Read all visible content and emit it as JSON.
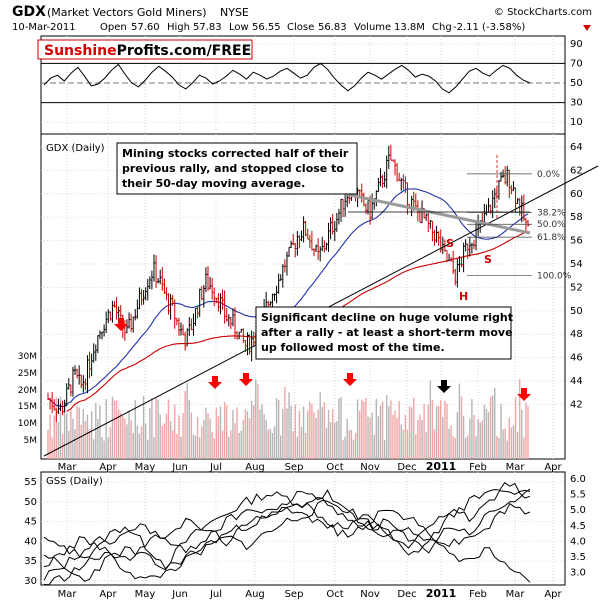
{
  "header": {
    "symbol": "GDX",
    "name": "(Market Vectors Gold Miners)",
    "exchange": "NYSE",
    "date": "10-Mar-2011",
    "open_label": "Open",
    "open": "57.60",
    "high_label": "High",
    "high": "57.83",
    "low_label": "Low",
    "low": "56.55",
    "close_label": "Close",
    "close": "56.83",
    "volume_label": "Volume",
    "volume": "13.8M",
    "chg_label": "Chg",
    "chg": "-2.11 (-3.58%)",
    "copyright": "© StockCharts.com"
  },
  "brand": {
    "part1": "Sunshine",
    "part2": "Profits.com/FREE",
    "color1": "#d40000"
  },
  "rsi": {
    "ticks": [
      90,
      70,
      50,
      30,
      10
    ],
    "values": [
      48,
      55,
      58,
      52,
      60,
      66,
      57,
      47,
      49,
      55,
      63,
      69,
      59,
      50,
      46,
      53,
      61,
      67,
      62,
      56,
      48,
      44,
      50,
      58,
      55,
      49,
      52,
      57,
      63,
      59,
      54,
      61,
      58,
      54,
      57,
      62,
      65,
      60,
      55,
      58,
      66,
      70,
      64,
      55,
      48,
      42,
      47,
      55,
      61,
      58,
      54,
      59,
      64,
      68,
      63,
      56,
      59,
      57,
      52,
      44,
      40,
      46,
      54,
      62,
      65,
      60,
      57,
      63,
      68,
      65,
      58,
      53,
      50
    ]
  },
  "price": {
    "title": "GDX (Daily)",
    "ticks": [
      64,
      62,
      60,
      58,
      56,
      54,
      52,
      50,
      48,
      46,
      44,
      42
    ],
    "close": [
      42.5,
      42.0,
      41.5,
      43.0,
      44.5,
      43.5,
      45.0,
      47.0,
      48.5,
      49.5,
      50.5,
      49.0,
      48.0,
      49.5,
      51.0,
      52.5,
      53.5,
      52.5,
      51.0,
      50.0,
      48.5,
      47.5,
      49.0,
      51.0,
      52.5,
      52.0,
      51.0,
      49.5,
      49.0,
      48.0,
      47.0,
      47.5,
      48.5,
      50.0,
      51.5,
      52.5,
      54.0,
      55.0,
      56.5,
      57.0,
      56.0,
      54.5,
      55.5,
      57.0,
      58.0,
      59.5,
      60.5,
      60.0,
      59.0,
      58.5,
      60.0,
      61.5,
      63.0,
      62.0,
      60.5,
      59.5,
      58.5,
      58.0,
      57.0,
      56.5,
      55.0,
      54.0,
      53.0,
      54.5,
      56.0,
      56.5,
      57.5,
      58.5,
      60.0,
      61.0,
      61.5,
      60.0,
      58.5,
      56.8
    ],
    "fib_levels": [
      {
        "label": "0.0%",
        "value": 61.7
      },
      {
        "label": "38.2%",
        "value": 58.4
      },
      {
        "label": "50.0%",
        "value": 57.4
      },
      {
        "label": "61.8%",
        "value": 56.3
      },
      {
        "label": "100.0%",
        "value": 53.0
      }
    ],
    "hs_labels": [
      "S",
      "S",
      "H"
    ],
    "annotation1": "Mining stocks corrected half of their previous rally, and stopped close to their 50-day moving average.",
    "annotation1_lines": [
      "Mining stocks corrected half of their",
      "previous rally, and stopped close to",
      "their 50-day moving average."
    ],
    "annotation2_lines": [
      "Significant decline on huge volume right",
      "after a rally - at least a short-term move",
      "up followed most of the time."
    ]
  },
  "volume": {
    "ticks": [
      "30M",
      "25M",
      "20M",
      "15M",
      "10M",
      "5M"
    ]
  },
  "gss": {
    "title": "GSS (Daily)",
    "left_ticks": [
      55,
      50,
      45,
      40,
      35,
      30
    ],
    "right_ticks": [
      "6.0",
      "5.5",
      "5.0",
      "4.5",
      "4.0",
      "3.5",
      "3.0"
    ]
  },
  "x_axis": {
    "labels": [
      "Mar",
      "Apr",
      "May",
      "Jun",
      "Jul",
      "Aug",
      "Sep",
      "Oct",
      "Nov",
      "Dec",
      "2011",
      "Feb",
      "Mar",
      "Apr"
    ]
  },
  "colors": {
    "up_bar": "#000000",
    "down_bar": "#cc0000",
    "ma50": "#2233aa",
    "ma200": "#cc0000",
    "arrow_red": "#ff0000",
    "arrow_black": "#000000",
    "vol_up": "#b5b5b5",
    "vol_down": "#f2a5a5"
  }
}
